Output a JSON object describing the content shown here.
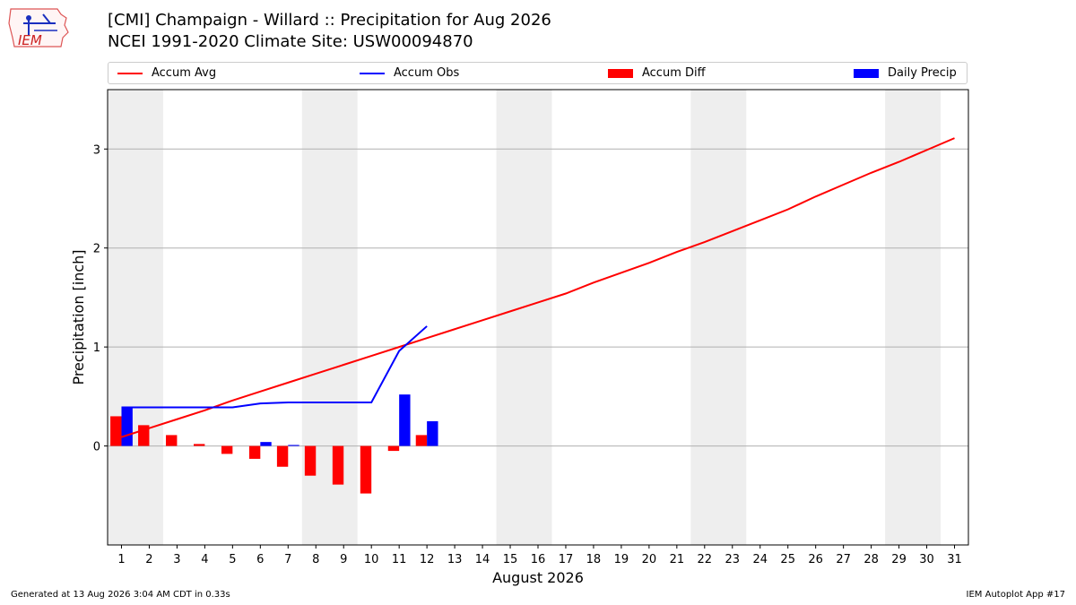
{
  "header": {
    "title_line1": "[CMI] Champaign - Willard :: Precipitation for Aug 2026",
    "title_line2": "NCEI 1991-2020 Climate Site: USW00094870"
  },
  "logo": {
    "text": "IEM",
    "name": "iem-logo"
  },
  "footer": {
    "generated": "Generated at 13 Aug 2026 3:04 AM CDT in 0.33s",
    "app": "IEM Autoplot App #17"
  },
  "colors": {
    "avg": "#ff0000",
    "obs": "#0000ff",
    "diff": "#ff0000",
    "daily": "#0000ff",
    "weekend": "#eeeeee",
    "grid": "#b0b0b0"
  },
  "chart_data": {
    "type": "bar",
    "xlabel": "August 2026",
    "ylabel": "Precipitation [inch]",
    "ylim": [
      -1.0,
      3.6
    ],
    "yticks": [
      0,
      1,
      2,
      3
    ],
    "xlim": [
      0.5,
      31.5
    ],
    "grid": "horizontal",
    "legend_position": "top",
    "days": [
      1,
      2,
      3,
      4,
      5,
      6,
      7,
      8,
      9,
      10,
      11,
      12,
      13,
      14,
      15,
      16,
      17,
      18,
      19,
      20,
      21,
      22,
      23,
      24,
      25,
      26,
      27,
      28,
      29,
      30,
      31
    ],
    "weekend_spans": [
      [
        1,
        2
      ],
      [
        8,
        9
      ],
      [
        15,
        16
      ],
      [
        22,
        23
      ],
      [
        29,
        30
      ]
    ],
    "series": [
      {
        "name": "Accum Avg",
        "kind": "line",
        "values": [
          0.09,
          0.18,
          0.27,
          0.36,
          0.46,
          0.55,
          0.64,
          0.73,
          0.82,
          0.91,
          1.0,
          1.09,
          1.18,
          1.27,
          1.36,
          1.45,
          1.54,
          1.65,
          1.75,
          1.85,
          1.96,
          2.06,
          2.17,
          2.28,
          2.39,
          2.52,
          2.64,
          2.76,
          2.87,
          2.99,
          3.11
        ]
      },
      {
        "name": "Accum Obs",
        "kind": "line",
        "values": [
          0.39,
          0.39,
          0.39,
          0.39,
          0.39,
          0.43,
          0.44,
          0.44,
          0.44,
          0.44,
          0.96,
          1.21
        ]
      },
      {
        "name": "Accum Diff",
        "kind": "bar",
        "values": [
          0.3,
          0.21,
          0.11,
          0.02,
          -0.08,
          -0.13,
          -0.21,
          -0.3,
          -0.39,
          -0.48,
          -0.05,
          0.11
        ]
      },
      {
        "name": "Daily Precip",
        "kind": "bar",
        "values": [
          0.39,
          0.0,
          0.0,
          0.0,
          0.0,
          0.04,
          0.01,
          0.0,
          0.0,
          0.0,
          0.52,
          0.25
        ]
      }
    ]
  }
}
